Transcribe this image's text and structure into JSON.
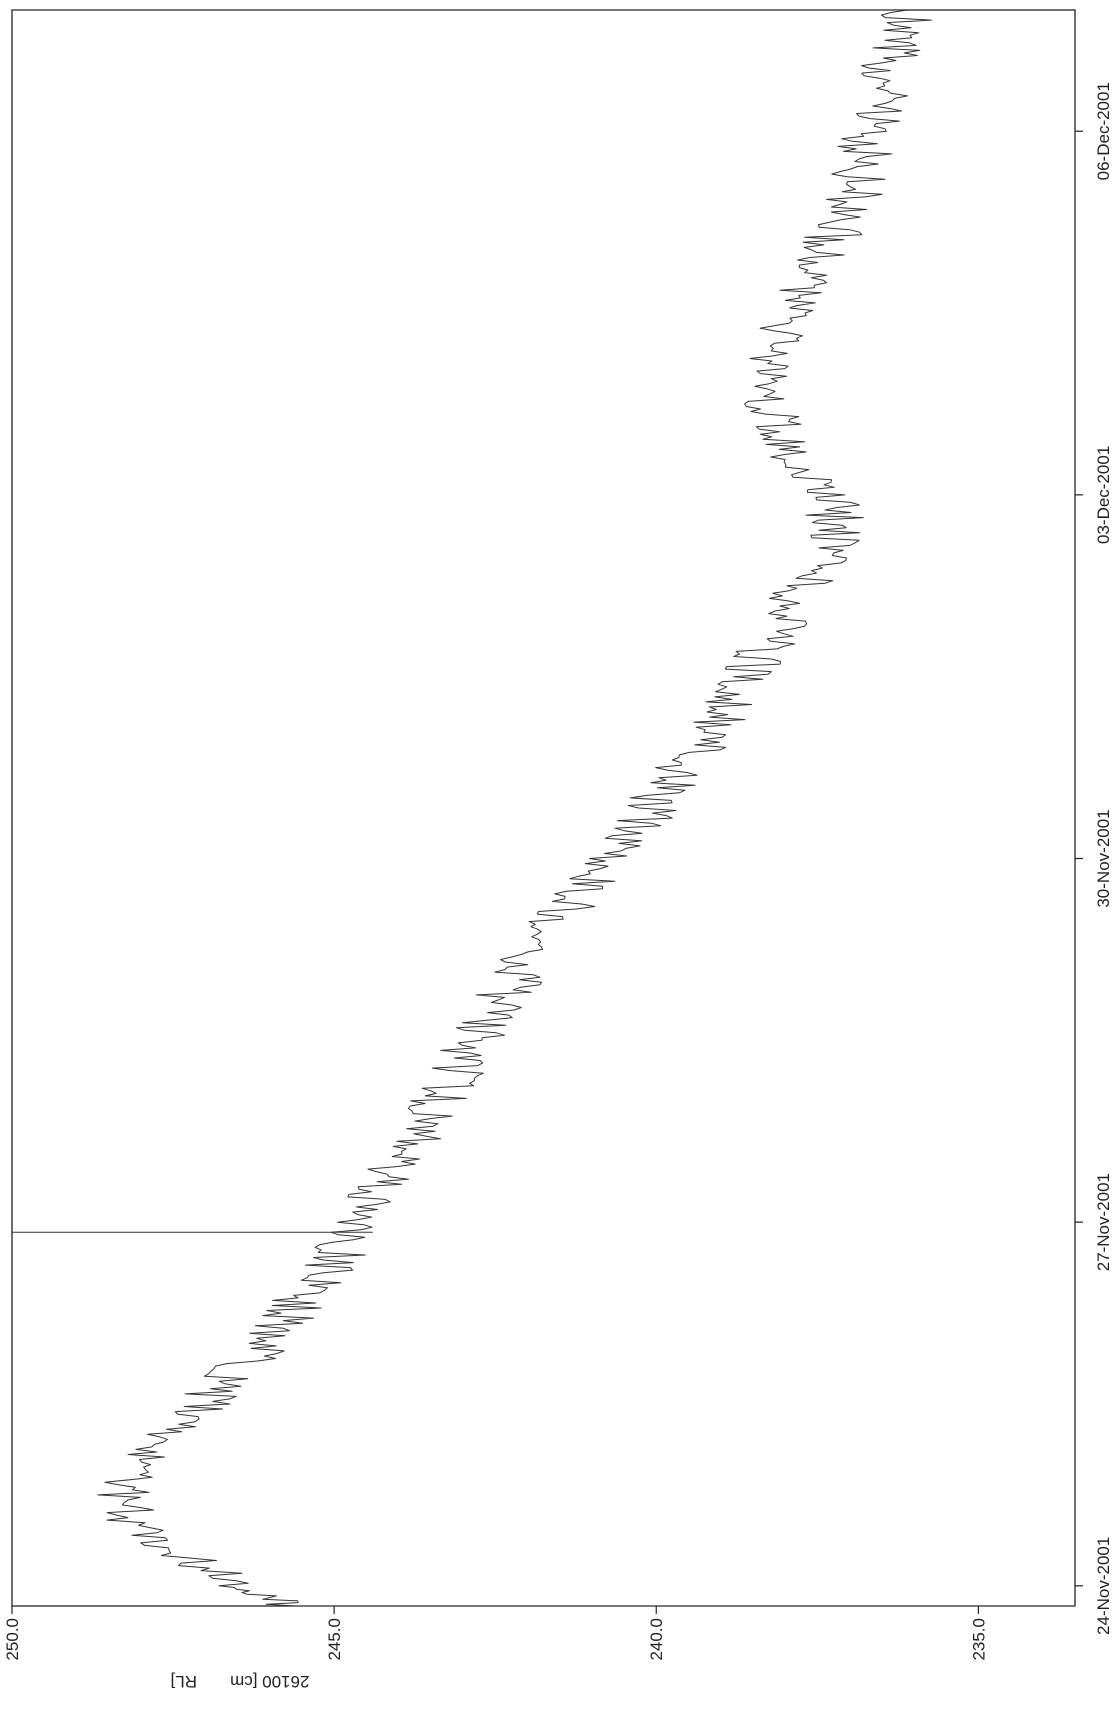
{
  "chart_data": {
    "type": "line",
    "orientation": "rotated-90-clockwise",
    "ylabel": "26100 [cm       RL]",
    "ylim": [
      233.5,
      250.0
    ],
    "y_ticks": [
      "250.0",
      "245.0",
      "240.0",
      "235.0"
    ],
    "y_tick_values": [
      250.0,
      245.0,
      240.0,
      235.0
    ],
    "x_ticks": [
      "24-Nov-2001",
      "27-Nov-2001",
      "30-Nov-2001",
      "03-Dec-2001",
      "06-Dec-2001"
    ],
    "x_tick_dates": [
      "2001-11-24",
      "2001-11-27",
      "2001-11-30",
      "2001-12-03",
      "2001-12-06"
    ],
    "xlim": [
      "2001-11-23 20:00",
      "2001-12-07 00:00"
    ],
    "grid": false,
    "series": [
      {
        "color": "#333333",
        "x": [
          "2001-11-23 20:00",
          "2001-11-24 00:00",
          "2001-11-24 06:00",
          "2001-11-24 12:00",
          "2001-11-24 18:00",
          "2001-11-25 00:00",
          "2001-11-25 06:00",
          "2001-11-25 12:00",
          "2001-11-25 18:00",
          "2001-11-26 00:00",
          "2001-11-26 06:00",
          "2001-11-26 12:00",
          "2001-11-26 18:00",
          "2001-11-27 00:00",
          "2001-11-27 06:00",
          "2001-11-27 12:00",
          "2001-11-27 18:00",
          "2001-11-28 00:00",
          "2001-11-28 06:00",
          "2001-11-28 12:00",
          "2001-11-28 18:00",
          "2001-11-29 00:00",
          "2001-11-29 06:00",
          "2001-11-29 12:00",
          "2001-11-29 18:00",
          "2001-11-30 00:00",
          "2001-11-30 06:00",
          "2001-11-30 12:00",
          "2001-11-30 18:00",
          "2001-12-01 00:00",
          "2001-12-01 06:00",
          "2001-12-01 12:00",
          "2001-12-01 18:00",
          "2001-12-02 00:00",
          "2001-12-02 06:00",
          "2001-12-02 12:00",
          "2001-12-02 18:00",
          "2001-12-03 00:00",
          "2001-12-03 06:00",
          "2001-12-03 12:00",
          "2001-12-03 18:00",
          "2001-12-04 00:00",
          "2001-12-04 06:00",
          "2001-12-04 12:00",
          "2001-12-04 18:00",
          "2001-12-05 00:00",
          "2001-12-05 06:00",
          "2001-12-05 12:00",
          "2001-12-05 18:00",
          "2001-12-06 00:00",
          "2001-12-06 06:00",
          "2001-12-06 12:00",
          "2001-12-06 18:00",
          "2001-12-07 00:00"
        ],
        "y": [
          245.6,
          246.5,
          247.3,
          248.1,
          248.3,
          248.0,
          247.5,
          247.0,
          246.6,
          246.1,
          245.7,
          245.3,
          244.9,
          244.6,
          244.3,
          244.0,
          243.7,
          243.4,
          243.1,
          242.8,
          242.5,
          242.2,
          241.9,
          241.5,
          241.1,
          240.7,
          240.3,
          240.0,
          239.6,
          239.2,
          238.9,
          238.6,
          238.3,
          238.0,
          237.7,
          237.4,
          237.2,
          237.3,
          237.7,
          238.1,
          238.3,
          238.2,
          238.1,
          238.0,
          237.7,
          237.4,
          237.1,
          236.9,
          236.8,
          236.7,
          236.5,
          236.4,
          236.3,
          236.1
        ]
      }
    ],
    "annotations": [
      {
        "type": "vertical-spike",
        "x": "2001-11-26 22:00",
        "y_low": 244.4,
        "y_high": 250.0
      },
      {
        "type": "vertical-edge",
        "x": "2001-11-23 20:00",
        "y_low": 233.5,
        "y_high": 245.6
      },
      {
        "type": "vertical-edge",
        "x": "2001-12-07 00:00",
        "y_low": 236.1,
        "y_high": 250.0
      }
    ]
  }
}
